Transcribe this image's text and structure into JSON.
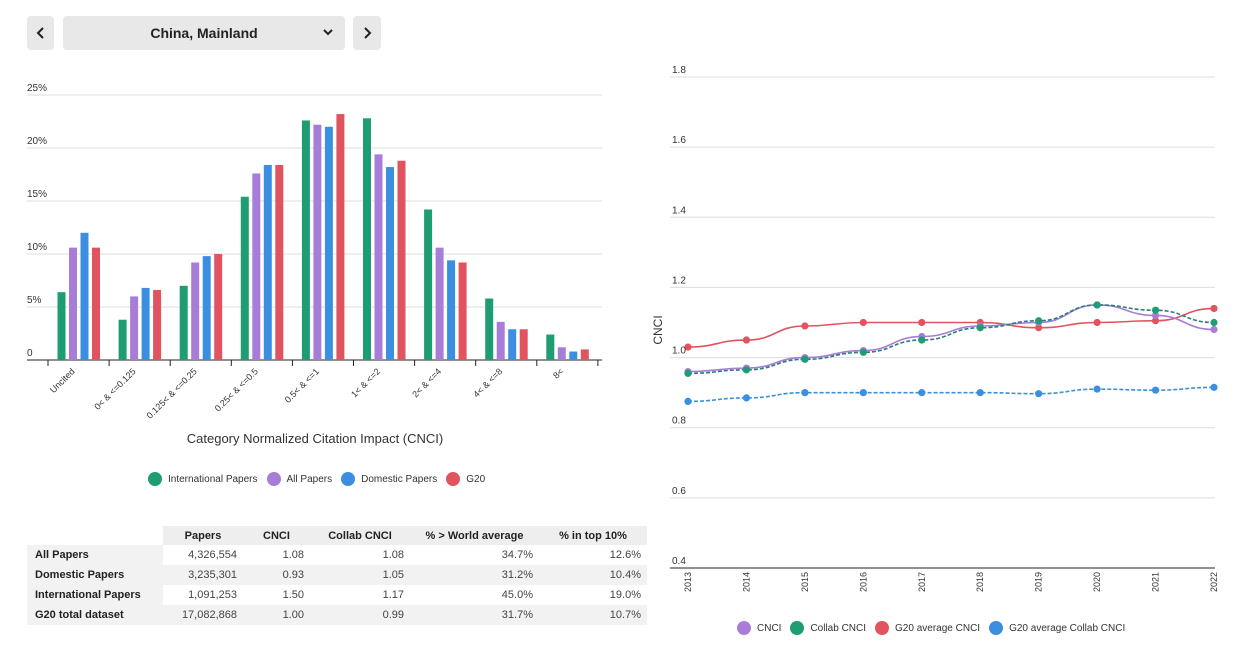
{
  "nav": {
    "country": "China, Mainland"
  },
  "chart_data": [
    {
      "type": "bar",
      "title": "",
      "xlabel": "Category Normalized Citation Impact (CNCI)",
      "ylabel": "",
      "categories": [
        "Uncited",
        "0< & <=0.125",
        "0.125< & <=0.25",
        "0.25< & <=0.5",
        "0.5< & <=1",
        "1< & <=2",
        "2< & <=4",
        "4< & <=8",
        "8<"
      ],
      "ylim": [
        0,
        25
      ],
      "yticks": [
        "0",
        "5%",
        "10%",
        "15%",
        "20%",
        "25%"
      ],
      "legend_position": "bottom",
      "series": [
        {
          "name": "International Papers",
          "color": "#1e9c72",
          "values": [
            6.4,
            3.8,
            7.0,
            15.4,
            22.6,
            22.8,
            14.2,
            5.8,
            2.4
          ]
        },
        {
          "name": "All Papers",
          "color": "#a77dd8",
          "values": [
            10.6,
            6.0,
            9.2,
            17.6,
            22.2,
            19.4,
            10.6,
            3.6,
            1.2
          ]
        },
        {
          "name": "Domestic Papers",
          "color": "#3b8ee0",
          "values": [
            12.0,
            6.8,
            9.8,
            18.4,
            22.0,
            18.2,
            9.4,
            2.9,
            0.8
          ]
        },
        {
          "name": "G20",
          "color": "#e0535f",
          "values": [
            10.6,
            6.6,
            10.0,
            18.4,
            23.2,
            18.8,
            9.2,
            2.9,
            1.0
          ]
        }
      ]
    },
    {
      "type": "line",
      "title": "",
      "xlabel": "",
      "ylabel": "CNCI",
      "x": [
        "2013",
        "2014",
        "2015",
        "2016",
        "2017",
        "2018",
        "2019",
        "2020",
        "2021",
        "2022"
      ],
      "ylim": [
        0.4,
        1.8
      ],
      "yticks": [
        "0.4",
        "0.6",
        "0.8",
        "1.0",
        "1.2",
        "1.4",
        "1.6",
        "1.8"
      ],
      "legend_position": "bottom",
      "series": [
        {
          "name": "CNCI",
          "color": "#a77dd8",
          "dashed": false,
          "values": [
            0.96,
            0.97,
            1.0,
            1.02,
            1.06,
            1.09,
            1.1,
            1.15,
            1.12,
            1.08
          ]
        },
        {
          "name": "Collab CNCI",
          "color": "#1e9c72",
          "dashed": true,
          "values": [
            0.955,
            0.965,
            0.995,
            1.015,
            1.05,
            1.085,
            1.105,
            1.15,
            1.135,
            1.1
          ]
        },
        {
          "name": "G20 average CNCI",
          "color": "#e0535f",
          "dashed": false,
          "values": [
            1.03,
            1.05,
            1.09,
            1.1,
            1.1,
            1.1,
            1.085,
            1.1,
            1.105,
            1.14
          ]
        },
        {
          "name": "G20 average Collab CNCI",
          "color": "#3b8ee0",
          "dashed": true,
          "values": [
            0.875,
            0.885,
            0.9,
            0.9,
            0.9,
            0.9,
            0.897,
            0.91,
            0.907,
            0.915
          ]
        }
      ]
    },
    {
      "type": "table",
      "columns": [
        "Papers",
        "CNCI",
        "Collab CNCI",
        "% > World average",
        "% in top 10%"
      ],
      "rows": [
        {
          "label": "All Papers",
          "values": [
            "4,326,554",
            "1.08",
            "1.08",
            "34.7%",
            "12.6%"
          ]
        },
        {
          "label": "Domestic Papers",
          "values": [
            "3,235,301",
            "0.93",
            "1.05",
            "31.2%",
            "10.4%"
          ]
        },
        {
          "label": "International Papers",
          "values": [
            "1,091,253",
            "1.50",
            "1.17",
            "45.0%",
            "19.0%"
          ]
        },
        {
          "label": "G20 total dataset",
          "values": [
            "17,082,868",
            "1.00",
            "0.99",
            "31.7%",
            "10.7%"
          ]
        }
      ]
    }
  ]
}
